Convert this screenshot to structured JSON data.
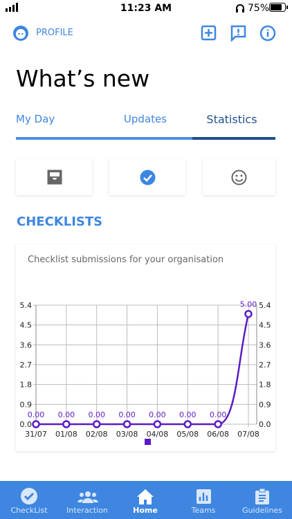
{
  "status_bar": {
    "time": "11:23 AM",
    "battery": "75%"
  },
  "header": {
    "profile": "PROFILE",
    "title": "What’s new"
  },
  "tabs": [
    "My Day",
    "Updates",
    "Statistics"
  ],
  "section_title": "CHECKLISTS",
  "chart_data": {
    "type": "line",
    "subtitle": "Checklist submissions for your organisation",
    "categories": [
      "31/07",
      "01/08",
      "02/08",
      "03/08",
      "04/08",
      "05/08",
      "06/08",
      "07/08"
    ],
    "series": [
      {
        "color": "#5a1bc6",
        "values": [
          0,
          0,
          0,
          0,
          0,
          0,
          0,
          5
        ],
        "value_labels": [
          "0.00",
          "0.00",
          "0.00",
          "0.00",
          "0.00",
          "0.00",
          "0.00",
          "5.00"
        ]
      }
    ],
    "ylim": [
      0,
      5.4
    ],
    "yticks": [
      {
        "value": 0,
        "label": "0.0"
      },
      0.9,
      1.8,
      2.7,
      3.6,
      4.5,
      5.4
    ],
    "grid": true
  },
  "bottom_nav": [
    "CheckList",
    "Interaction",
    "Home",
    "Teams",
    "Guidelines"
  ]
}
